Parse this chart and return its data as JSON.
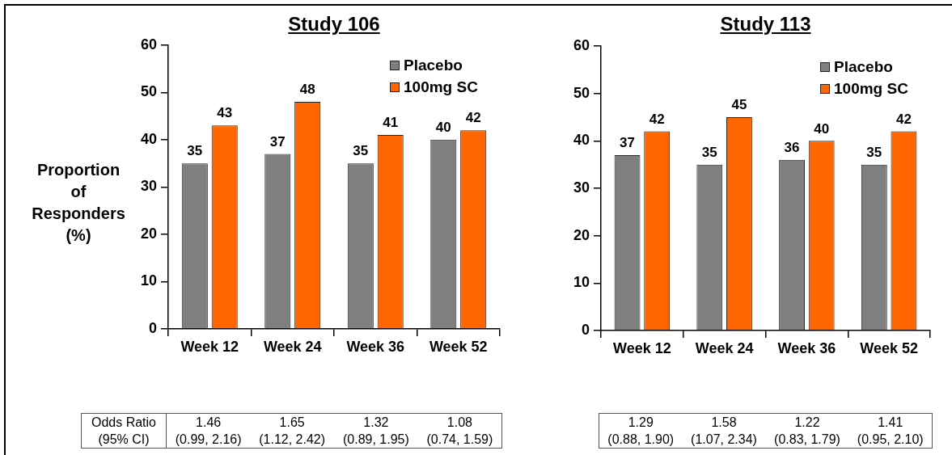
{
  "chart_data": [
    {
      "type": "bar",
      "title": "Study 106",
      "ylabel": "Proportion of Responders (%)",
      "categories": [
        "Week 12",
        "Week 24",
        "Week 36",
        "Week 52"
      ],
      "series": [
        {
          "name": "Placebo",
          "color": "#7f7f7f",
          "values": [
            35,
            37,
            35,
            40
          ]
        },
        {
          "name": "100mg SC",
          "color": "#ff6600",
          "values": [
            43,
            48,
            41,
            42
          ]
        }
      ],
      "ylim": [
        0,
        60
      ],
      "yticks": [
        0,
        10,
        20,
        30,
        40,
        50,
        60
      ],
      "legend": "top right",
      "data_labels": true,
      "annotations": [
        "Odds Ratio",
        "(95% CI)",
        "1.46",
        "(0.99, 2.16)",
        "1.65",
        "(1.12, 2.42)",
        "1.32",
        "(0.89, 1.95)",
        "1.08",
        "(0.74, 1.59)"
      ]
    },
    {
      "type": "bar",
      "title": "Study 113",
      "categories": [
        "Week 12",
        "Week 24",
        "Week 36",
        "Week 52"
      ],
      "series": [
        {
          "name": "Placebo",
          "color": "#7f7f7f",
          "values": [
            37,
            35,
            36,
            35
          ]
        },
        {
          "name": "100mg SC",
          "color": "#ff6600",
          "values": [
            42,
            45,
            40,
            42
          ]
        }
      ],
      "ylim": [
        0,
        60
      ],
      "yticks": [
        0,
        10,
        20,
        30,
        40,
        50,
        60
      ],
      "legend": "top right",
      "data_labels": true,
      "annotations": [
        "1.29",
        "(0.88, 1.90)",
        "1.58",
        "(1.07, 2.34)",
        "1.22",
        "(0.83, 1.79)",
        "1.41",
        "(0.95, 2.10)"
      ]
    }
  ]
}
